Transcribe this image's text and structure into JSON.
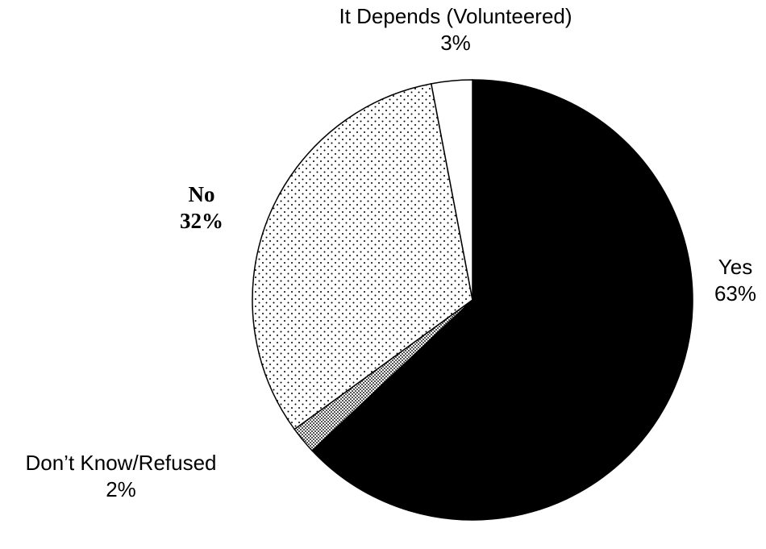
{
  "chart_data": {
    "type": "pie",
    "title": "",
    "slices": [
      {
        "label": "Yes",
        "value_label": "63%",
        "value": 63,
        "fill": "#000000",
        "pattern": "solid"
      },
      {
        "label": "Don’t Know/Refused",
        "value_label": "2%",
        "value": 2,
        "fill": "#c8c8c8",
        "pattern": "dense-dots"
      },
      {
        "label": "No",
        "value_label": "32%",
        "value": 32,
        "fill": "#ffffff",
        "pattern": "sparse-dots"
      },
      {
        "label": "It Depends (Volunteered)",
        "value_label": "3%",
        "value": 3,
        "fill": "#ffffff",
        "pattern": "solid"
      }
    ],
    "start": "12 o'clock",
    "direction": "clockwise",
    "legend": "none",
    "stroke_color": "#000000"
  }
}
